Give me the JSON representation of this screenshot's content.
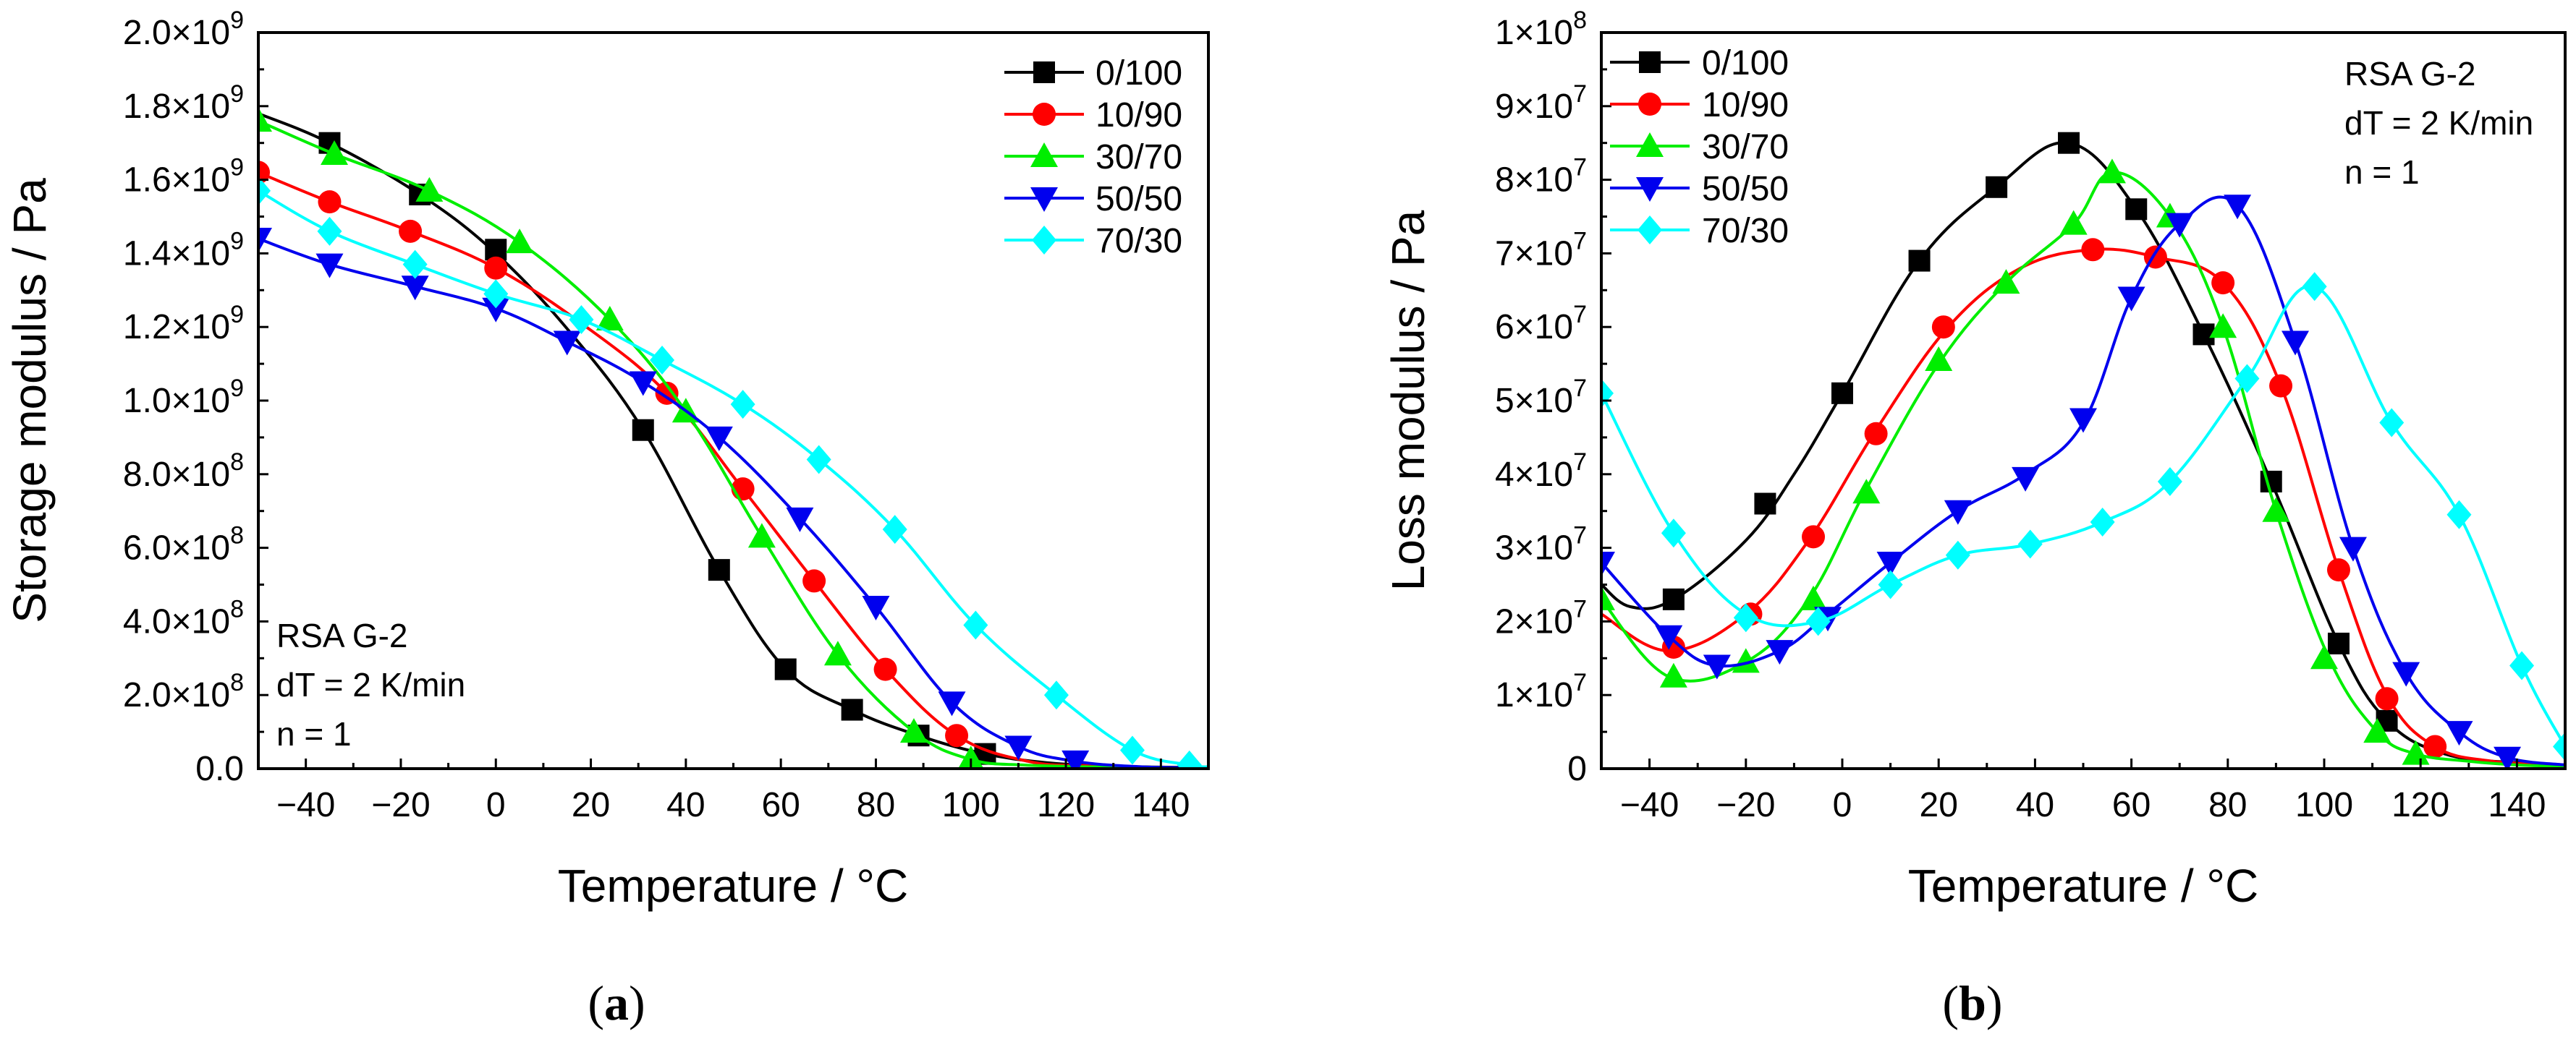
{
  "figure": {
    "caption_a": {
      "open": "(",
      "letter": "a",
      "close": ")"
    },
    "caption_b": {
      "open": "(",
      "letter": "b",
      "close": ")"
    }
  },
  "chart_data": [
    {
      "id": "a",
      "type": "line",
      "xlabel": "Temperature / °C",
      "ylabel": "Storage modulus / Pa",
      "xlim": [
        -50,
        150
      ],
      "ylim": [
        0,
        2000000000
      ],
      "xticks": [
        -40,
        -20,
        0,
        20,
        40,
        60,
        80,
        100,
        120,
        140
      ],
      "xtick_labels": [
        "−40",
        "−20",
        "0",
        "20",
        "40",
        "60",
        "80",
        "100",
        "120",
        "140"
      ],
      "yticks": [
        0,
        200000000,
        400000000,
        600000000,
        800000000,
        1000000000,
        1200000000,
        1400000000,
        1600000000,
        1800000000,
        2000000000
      ],
      "ytick_labels": [
        {
          "mant": "0.0",
          "exp": ""
        },
        {
          "mant": "2.0×10",
          "exp": "8"
        },
        {
          "mant": "4.0×10",
          "exp": "8"
        },
        {
          "mant": "6.0×10",
          "exp": "8"
        },
        {
          "mant": "8.0×10",
          "exp": "8"
        },
        {
          "mant": "1.0×10",
          "exp": "9"
        },
        {
          "mant": "1.2×10",
          "exp": "9"
        },
        {
          "mant": "1.4×10",
          "exp": "9"
        },
        {
          "mant": "1.6×10",
          "exp": "9"
        },
        {
          "mant": "1.8×10",
          "exp": "9"
        },
        {
          "mant": "2.0×10",
          "exp": "9"
        }
      ],
      "legend_position": "top-right",
      "annotation": [
        "RSA G-2",
        "dT = 2 K/min",
        "n = 1"
      ],
      "annotation_position": "bottom-left",
      "series": [
        {
          "name": "0/100",
          "color": "#000000",
          "marker": "square",
          "x": [
            -50,
            -35,
            -16,
            0,
            16,
            31,
            47,
            61,
            75,
            89,
            103,
            117,
            132,
            147,
            150
          ],
          "y": [
            1780000000.0,
            1700000000.0,
            1560000000.0,
            1400000000.0,
            1180000000.0,
            920000000.0,
            540000000.0,
            270000000.0,
            160000000.0,
            90000000.0,
            40000000.0,
            15000000.0,
            6000000.0,
            3000000.0,
            2000000.0
          ],
          "markers_x": [
            -35,
            -16,
            0,
            31,
            47,
            61,
            75,
            89,
            103
          ],
          "markers_y": [
            1700000000.0,
            1560000000.0,
            1410000000.0,
            920000000.0,
            540000000.0,
            270000000.0,
            160000000.0,
            90000000.0,
            40000000.0
          ]
        },
        {
          "name": "10/90",
          "color": "#ff0000",
          "marker": "circle",
          "x": [
            -50,
            -35,
            -18,
            0,
            18,
            36,
            52,
            67,
            82,
            97,
            112,
            125,
            138,
            150
          ],
          "y": [
            1620000000.0,
            1540000000.0,
            1460000000.0,
            1360000000.0,
            1210000000.0,
            1020000000.0,
            760000000.0,
            510000000.0,
            270000000.0,
            90000000.0,
            20000000.0,
            8000000.0,
            3000000.0,
            2000000.0
          ],
          "markers_x": [
            -50,
            -35,
            -18,
            0,
            36,
            52,
            67,
            82,
            97
          ],
          "markers_y": [
            1620000000.0,
            1540000000.0,
            1460000000.0,
            1360000000.0,
            1020000000.0,
            760000000.0,
            510000000.0,
            270000000.0,
            90000000.0
          ]
        },
        {
          "name": "30/70",
          "color": "#00ee00",
          "marker": "triangle-up",
          "x": [
            -50,
            -34,
            -14,
            5,
            24,
            40,
            56,
            72,
            88,
            100,
            111,
            125,
            140,
            150
          ],
          "y": [
            1760000000.0,
            1670000000.0,
            1570000000.0,
            1430000000.0,
            1220000000.0,
            970000000.0,
            630000000.0,
            310000000.0,
            100000000.0,
            25000000.0,
            10000000.0,
            5000000.0,
            2000000.0,
            1000000.0
          ],
          "markers_x": [
            -50,
            -34,
            -14,
            5,
            24,
            40,
            56,
            72,
            88,
            100
          ],
          "markers_y": [
            1760000000.0,
            1670000000.0,
            1570000000.0,
            1430000000.0,
            1220000000.0,
            970000000.0,
            630000000.0,
            310000000.0,
            100000000.0,
            25000000.0
          ]
        },
        {
          "name": "50/50",
          "color": "#0000ee",
          "marker": "triangle-down",
          "x": [
            -50,
            -35,
            -17,
            0,
            15,
            31,
            47,
            64,
            80,
            96,
            110,
            122,
            136,
            150
          ],
          "y": [
            1440000000.0,
            1370000000.0,
            1310000000.0,
            1250000000.0,
            1160000000.0,
            1050000000.0,
            900000000.0,
            680000000.0,
            440000000.0,
            180000000.0,
            60000000.0,
            20000000.0,
            5000000.0,
            2000000.0
          ],
          "markers_x": [
            -50,
            -35,
            -17,
            0,
            15,
            31,
            47,
            64,
            80,
            96,
            110,
            122
          ],
          "markers_y": [
            1440000000.0,
            1370000000.0,
            1310000000.0,
            1250000000.0,
            1160000000.0,
            1050000000.0,
            900000000.0,
            680000000.0,
            440000000.0,
            180000000.0,
            60000000.0,
            20000000.0
          ]
        },
        {
          "name": "70/30",
          "color": "#00ffff",
          "marker": "diamond",
          "x": [
            -50,
            -35,
            -17,
            0,
            18,
            35,
            52,
            68,
            84,
            101,
            118,
            134,
            146,
            150
          ],
          "y": [
            1570000000.0,
            1460000000.0,
            1370000000.0,
            1290000000.0,
            1220000000.0,
            1110000000.0,
            990000000.0,
            840000000.0,
            650000000.0,
            390000000.0,
            200000000.0,
            50000000.0,
            10000000.0,
            5000000.0
          ],
          "markers_x": [
            -50,
            -35,
            -17,
            0,
            18,
            35,
            52,
            68,
            84,
            101,
            118,
            134,
            146
          ],
          "markers_y": [
            1570000000.0,
            1460000000.0,
            1370000000.0,
            1290000000.0,
            1220000000.0,
            1110000000.0,
            990000000.0,
            840000000.0,
            650000000.0,
            390000000.0,
            200000000.0,
            50000000.0,
            10000000.0
          ]
        }
      ]
    },
    {
      "id": "b",
      "type": "line",
      "xlabel": "Temperature / °C",
      "ylabel": "Loss modulus / Pa",
      "xlim": [
        -50,
        150
      ],
      "ylim": [
        0,
        100000000
      ],
      "xticks": [
        -40,
        -20,
        0,
        20,
        40,
        60,
        80,
        100,
        120,
        140
      ],
      "xtick_labels": [
        "−40",
        "−20",
        "0",
        "20",
        "40",
        "60",
        "80",
        "100",
        "120",
        "140"
      ],
      "yticks": [
        0,
        10000000,
        20000000,
        30000000,
        40000000,
        50000000,
        60000000,
        70000000,
        80000000,
        90000000,
        100000000
      ],
      "ytick_labels": [
        {
          "mant": "0",
          "exp": ""
        },
        {
          "mant": "1×10",
          "exp": "7"
        },
        {
          "mant": "2×10",
          "exp": "7"
        },
        {
          "mant": "3×10",
          "exp": "7"
        },
        {
          "mant": "4×10",
          "exp": "7"
        },
        {
          "mant": "5×10",
          "exp": "7"
        },
        {
          "mant": "6×10",
          "exp": "7"
        },
        {
          "mant": "7×10",
          "exp": "7"
        },
        {
          "mant": "8×10",
          "exp": "7"
        },
        {
          "mant": "9×10",
          "exp": "7"
        },
        {
          "mant": "1×10",
          "exp": "8"
        }
      ],
      "legend_position": "top-left",
      "annotation": [
        "RSA G-2",
        "dT = 2 K/min",
        "n = 1"
      ],
      "annotation_position": "top-right",
      "series": [
        {
          "name": "0/100",
          "color": "#000000",
          "marker": "square",
          "x": [
            -50,
            -44,
            -35,
            -20,
            -10,
            0,
            16,
            32,
            47,
            61,
            75,
            89,
            103,
            113,
            125,
            140,
            150
          ],
          "y": [
            25000000.0,
            22000000.0,
            23000000.0,
            31000000.0,
            40000000.0,
            51000000.0,
            69000000.0,
            79000000.0,
            85000000.0,
            76000000.0,
            59000000.0,
            39000000.0,
            17000000.0,
            6500000.0,
            2000000.0,
            800000.0,
            500000.0
          ],
          "markers_x": [
            -35,
            -16,
            0,
            16,
            32,
            47,
            61,
            75,
            89,
            103,
            113
          ],
          "markers_y": [
            23000000.0,
            36000000.0,
            51000000.0,
            69000000.0,
            79000000.0,
            85000000.0,
            76000000.0,
            59000000.0,
            39000000.0,
            17000000.0,
            6500000.0
          ]
        },
        {
          "name": "10/90",
          "color": "#ff0000",
          "marker": "circle",
          "x": [
            -50,
            -36,
            -20,
            -7,
            7,
            22,
            37,
            52,
            65,
            79,
            91,
            103,
            113,
            123,
            135,
            150
          ],
          "y": [
            21000000.0,
            16000000.0,
            21000000.0,
            31000000.0,
            46000000.0,
            60000000.0,
            68000000.0,
            70500000.0,
            69500000.0,
            66000000.0,
            52000000.0,
            27000000.0,
            10000000.0,
            3000000.0,
            1000000.0,
            500000.0
          ],
          "markers_x": [
            -35,
            -19,
            -6,
            7,
            21,
            52,
            65,
            79,
            91,
            103,
            113,
            123
          ],
          "markers_y": [
            16500000.0,
            21000000.0,
            31500000.0,
            45500000.0,
            60000000.0,
            70500000.0,
            69500000.0,
            66000000.0,
            52000000.0,
            27000000.0,
            9500000.0,
            3000000.0
          ]
        },
        {
          "name": "30/70",
          "color": "#00ee00",
          "marker": "triangle-up",
          "x": [
            -50,
            -36,
            -20,
            -7,
            5,
            20,
            34,
            48,
            56,
            68,
            79,
            90,
            101,
            111,
            119,
            130,
            140,
            150
          ],
          "y": [
            23000000.0,
            12500000.0,
            14500000.0,
            23000000.0,
            38000000.0,
            55000000.0,
            66000000.0,
            74000000.0,
            81000000.0,
            75000000.0,
            60000000.0,
            35000000.0,
            15000000.0,
            5000000.0,
            2000000.0,
            1000000.0,
            500000.0,
            300000.0
          ],
          "markers_x": [
            -50,
            -35,
            -20,
            -6,
            5,
            20,
            34,
            48,
            56,
            68,
            79,
            90,
            100,
            111,
            119
          ],
          "markers_y": [
            23000000.0,
            12500000.0,
            14500000.0,
            23000000.0,
            37500000.0,
            55500000.0,
            66000000.0,
            74000000.0,
            81000000.0,
            75000000.0,
            60000000.0,
            35000000.0,
            15000000.0,
            5000000.0,
            2000000.0
          ]
        },
        {
          "name": "50/50",
          "color": "#0000ee",
          "marker": "triangle-down",
          "x": [
            -50,
            -36,
            -26,
            -13,
            -3,
            10,
            24,
            38,
            50,
            60,
            70,
            82,
            94,
            106,
            117,
            128,
            138,
            150
          ],
          "y": [
            28000000.0,
            18000000.0,
            14000000.0,
            16000000.0,
            21000000.0,
            28000000.0,
            35000000.0,
            40000000.0,
            47000000.0,
            64000000.0,
            74000000.0,
            76500000.0,
            58000000.0,
            30000000.0,
            13000000.0,
            5000000.0,
            1500000.0,
            500000.0
          ],
          "markers_x": [
            -50,
            -36,
            -26,
            -13,
            -3,
            10,
            24,
            38,
            50,
            60,
            70,
            82,
            94,
            106,
            117,
            128,
            138
          ],
          "markers_y": [
            28000000.0,
            18000000.0,
            14000000.0,
            16000000.0,
            20500000.0,
            28000000.0,
            35000000.0,
            39500000.0,
            47500000.0,
            64000000.0,
            74000000.0,
            76500000.0,
            58000000.0,
            30000000.0,
            13000000.0,
            5000000.0,
            1500000.0
          ]
        },
        {
          "name": "70/30",
          "color": "#00ffff",
          "marker": "diamond",
          "x": [
            -50,
            -35,
            -20,
            -5,
            10,
            24,
            39,
            54,
            68,
            84,
            98,
            114,
            128,
            141,
            150
          ],
          "y": [
            51000000.0,
            32000000.0,
            21000000.0,
            20000000.0,
            25000000.0,
            29000000.0,
            30500000.0,
            33500000.0,
            39000000.0,
            53000000.0,
            65500000.0,
            47000000.0,
            34500000.0,
            14000000.0,
            3000000.0
          ],
          "markers_x": [
            -50,
            -35,
            -20,
            -5,
            10,
            24,
            39,
            54,
            68,
            84,
            98,
            114,
            128,
            141,
            150
          ],
          "markers_y": [
            51000000.0,
            32000000.0,
            20500000.0,
            20000000.0,
            25000000.0,
            29000000.0,
            30500000.0,
            33500000.0,
            39000000.0,
            53000000.0,
            65500000.0,
            47000000.0,
            34500000.0,
            14000000.0,
            3000000.0
          ]
        }
      ]
    }
  ]
}
